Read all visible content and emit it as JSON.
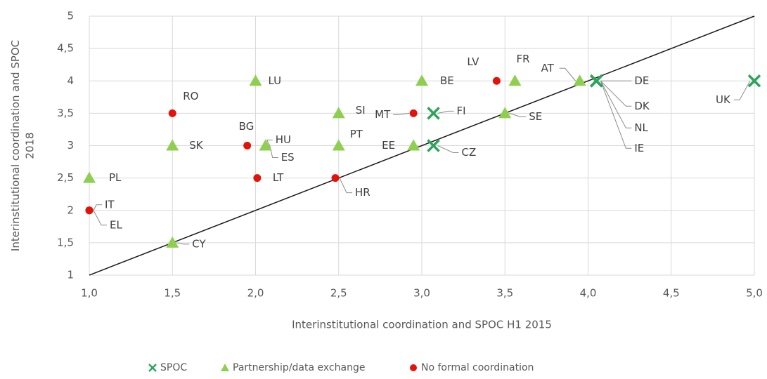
{
  "chart_data": {
    "type": "scatter",
    "title": "",
    "xlabel": "Interinstitutional coordination and SPOC H1 2015",
    "ylabel": "Interinstitutional coordination and SPOC 2018",
    "xlim": [
      1,
      5
    ],
    "ylim": [
      1,
      5
    ],
    "grid": true,
    "legend_position": "bottom",
    "x_ticks": [
      "1,0",
      "1,5",
      "2,0",
      "2,5",
      "3,0",
      "3,5",
      "4,0",
      "4,5",
      "5,0"
    ],
    "y_ticks": [
      "1",
      "1,5",
      "2",
      "2,5",
      "3",
      "3,5",
      "4",
      "4,5",
      "5"
    ],
    "diagonal": {
      "from": [
        1,
        1
      ],
      "to": [
        5,
        5
      ]
    },
    "colors": {
      "SPOC": "#2ca45a",
      "Partnership/data exchange": "#8fcf4f",
      "No formal coordination": "#e3120b"
    },
    "series": [
      {
        "name": "SPOC",
        "marker": "x",
        "points": [
          {
            "label": "FI",
            "x": 3.07,
            "y": 3.5
          },
          {
            "label": "CZ",
            "x": 3.07,
            "y": 3.0
          },
          {
            "label": "DE",
            "x": 4.05,
            "y": 4.0
          },
          {
            "label": "DK",
            "x": 4.05,
            "y": 4.0
          },
          {
            "label": "NL",
            "x": 4.05,
            "y": 4.0
          },
          {
            "label": "IE",
            "x": 4.05,
            "y": 4.0
          },
          {
            "label": "UK",
            "x": 5.0,
            "y": 4.0
          }
        ]
      },
      {
        "name": "Partnership/data exchange",
        "marker": "triangle",
        "points": [
          {
            "label": "PL",
            "x": 1.0,
            "y": 2.5
          },
          {
            "label": "SK",
            "x": 1.5,
            "y": 3.0
          },
          {
            "label": "CY",
            "x": 1.5,
            "y": 1.5
          },
          {
            "label": "LU",
            "x": 2.0,
            "y": 4.0
          },
          {
            "label": "HU",
            "x": 2.06,
            "y": 3.0
          },
          {
            "label": "ES",
            "x": 2.06,
            "y": 3.0
          },
          {
            "label": "SI",
            "x": 2.5,
            "y": 3.5
          },
          {
            "label": "PT",
            "x": 2.5,
            "y": 3.0
          },
          {
            "label": "BE",
            "x": 3.0,
            "y": 4.0
          },
          {
            "label": "EE",
            "x": 2.95,
            "y": 3.0
          },
          {
            "label": "FR",
            "x": 3.56,
            "y": 4.0
          },
          {
            "label": "SE",
            "x": 3.5,
            "y": 3.5
          },
          {
            "label": "AT",
            "x": 3.95,
            "y": 4.0
          }
        ]
      },
      {
        "name": "No formal coordination",
        "marker": "circle",
        "points": [
          {
            "label": "RO",
            "x": 1.5,
            "y": 3.5
          },
          {
            "label": "IT",
            "x": 1.0,
            "y": 2.0
          },
          {
            "label": "EL",
            "x": 1.0,
            "y": 2.0
          },
          {
            "label": "BG",
            "x": 1.95,
            "y": 3.0
          },
          {
            "label": "LT",
            "x": 2.01,
            "y": 2.5
          },
          {
            "label": "HR",
            "x": 2.48,
            "y": 2.5
          },
          {
            "label": "MT",
            "x": 2.95,
            "y": 3.5
          },
          {
            "label": "LV",
            "x": 3.45,
            "y": 4.0
          }
        ]
      }
    ]
  }
}
